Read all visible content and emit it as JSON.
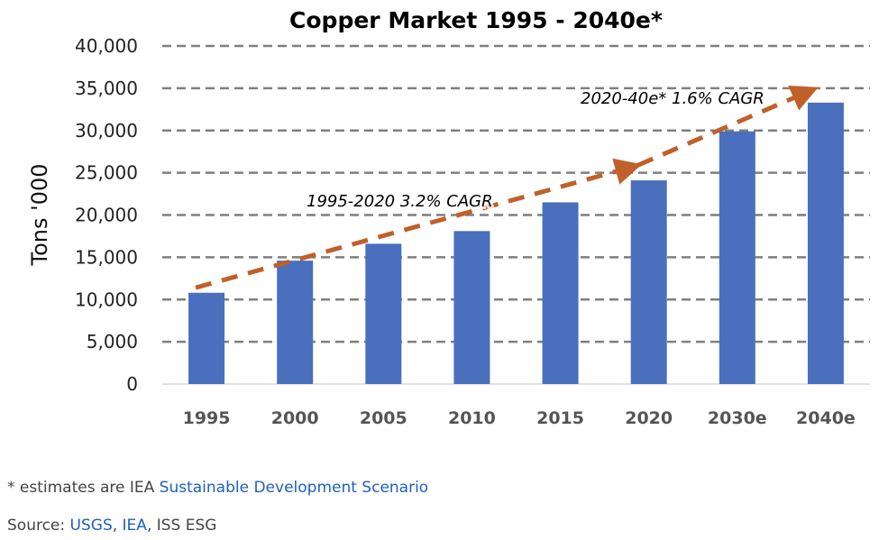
{
  "chart_data": {
    "type": "bar",
    "title": "Copper Market 1995 - 2040e*",
    "xlabel": "",
    "ylabel": "Tons '000",
    "categories": [
      "1995",
      "2000",
      "2005",
      "2010",
      "2015",
      "2020",
      "2030e",
      "2040e"
    ],
    "values": [
      10800,
      14600,
      16600,
      18100,
      21500,
      24100,
      29900,
      33300
    ],
    "ylim": [
      0,
      40000
    ],
    "yticks": [
      0,
      5000,
      10000,
      15000,
      20000,
      25000,
      30000,
      35000,
      40000
    ],
    "ytick_labels": [
      "0",
      "5,000",
      "10,000",
      "15,000",
      "20,000",
      "25,000",
      "30,000",
      "35,000",
      "40,000"
    ],
    "grid": true,
    "legend": "none",
    "bar_color": "#4a6fbd",
    "trend_color": "#c0602a",
    "annotations": [
      {
        "text": "1995-2020  3.2% CAGR",
        "from_category": "1995",
        "to_category": "2020",
        "from_value": 11400,
        "to_value": 25900
      },
      {
        "text": "2020-40e*  1.6% CAGR",
        "from_category": "2020",
        "to_category": "2040e",
        "from_value": 25900,
        "to_value": 34800
      }
    ]
  },
  "footnotes": {
    "estimate_prefix": "* estimates are IEA ",
    "estimate_link": "Sustainable Development Scenario",
    "source_prefix": "Source: ",
    "source_link_1": "USGS",
    "source_sep_1": ", ",
    "source_link_2": "IEA",
    "source_rest": ", ISS ESG"
  }
}
